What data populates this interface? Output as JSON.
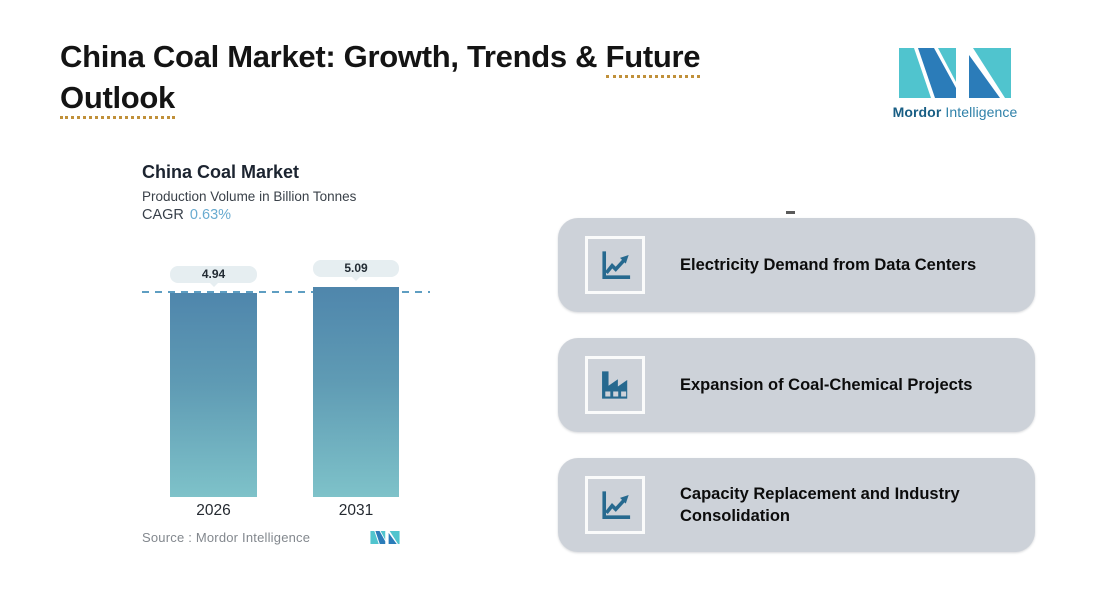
{
  "header": {
    "title_plain": "China Coal Market: Growth, Trends & ",
    "title_underline_1": "Future",
    "title_underline_2": "Outlook"
  },
  "logo": {
    "name_bold": "Mordor",
    "name_regular": "Intelligence"
  },
  "chart": {
    "title": "China Coal Market",
    "subtitle": "Production Volume in Billion Tonnes",
    "cagr_label": "CAGR",
    "cagr_value": "0.63%",
    "source_label": "Source :  Mordor Intelligence"
  },
  "chart_data": {
    "type": "bar",
    "title": "China Coal Market",
    "subtitle": "Production Volume in Billion Tonnes",
    "ylabel": "Production Volume in Billion Tonnes",
    "categories": [
      "2026",
      "2031"
    ],
    "values": [
      4.94,
      5.09
    ],
    "data_labels": [
      "4.94",
      "5.09"
    ],
    "annotation": "CAGR 0.63%",
    "reference_line": 4.94,
    "ylim": [
      0,
      5.2
    ],
    "grid": false,
    "legend": false,
    "bar_gradient": [
      "#4F86AC",
      "#7EC2C9"
    ]
  },
  "drivers": [
    {
      "icon": "line-chart-icon",
      "label": "Electricity Demand from Data Centers"
    },
    {
      "icon": "factory-icon",
      "label": "Expansion of Coal-Chemical Projects"
    },
    {
      "icon": "line-chart-icon",
      "label": "Capacity Replacement and Industry Consolidation"
    }
  ],
  "colors": {
    "brand_teal": "#50C4CE",
    "brand_blue": "#2B7CB9",
    "icon_blue": "#26698F",
    "card_bg": "#CDD2D9",
    "bar_top": "#4F86AC",
    "bar_bottom": "#7EC2C9",
    "dashed_line": "#5E9EC2",
    "pill_bg": "#E6EEF1",
    "title_underline": "#C0903A",
    "cagr_value": "#69ABD0"
  }
}
